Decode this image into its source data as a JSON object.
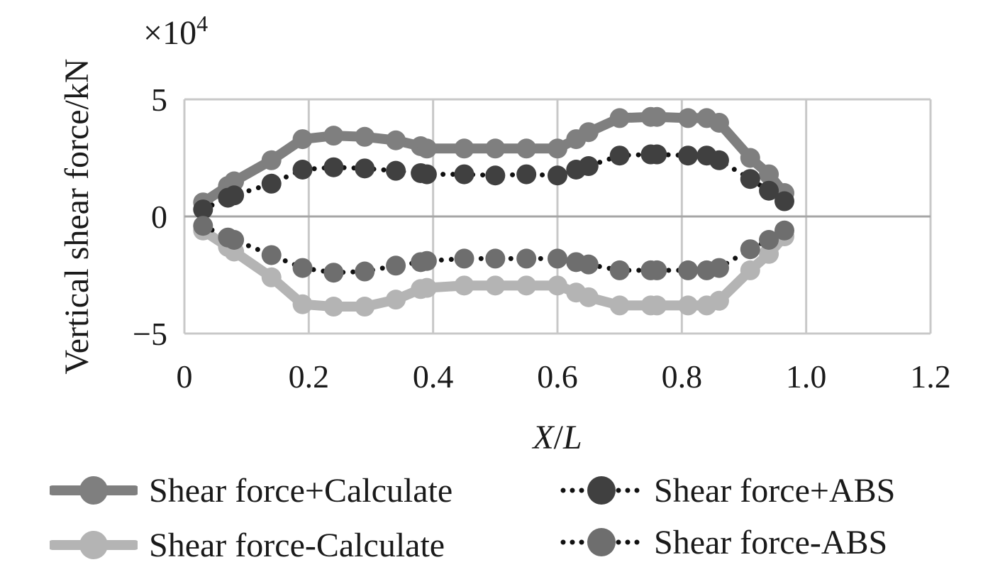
{
  "chart_data": {
    "type": "line",
    "title": "",
    "multiplier_label": "×10",
    "multiplier_exponent": "4",
    "xlabel_left": "X",
    "xlabel_sep": "/",
    "xlabel_right": "L",
    "ylabel": "Vertical shear force/kN",
    "xlim": [
      0,
      1.2
    ],
    "ylim": [
      -5,
      5
    ],
    "x_ticks": [
      0,
      0.2,
      0.4,
      0.6,
      0.8,
      1.0,
      1.2
    ],
    "x_tick_labels": [
      "0",
      "0.2",
      "0.4",
      "0.6",
      "0.8",
      "1.0",
      "1.2"
    ],
    "y_ticks": [
      5,
      0,
      -5
    ],
    "y_tick_labels": [
      "5",
      "0",
      "−5"
    ],
    "grid": true,
    "legend_position": "bottom",
    "series": [
      {
        "name": "Shear force+Calculate",
        "color": "#7f7f7f",
        "style": "solid",
        "points": [
          [
            0.03,
            0.6
          ],
          [
            0.07,
            1.3
          ],
          [
            0.08,
            1.5
          ],
          [
            0.14,
            2.4
          ],
          [
            0.19,
            3.3
          ],
          [
            0.24,
            3.45
          ],
          [
            0.29,
            3.4
          ],
          [
            0.34,
            3.25
          ],
          [
            0.38,
            3.0
          ],
          [
            0.39,
            2.9
          ],
          [
            0.45,
            2.9
          ],
          [
            0.5,
            2.9
          ],
          [
            0.55,
            2.9
          ],
          [
            0.6,
            2.9
          ],
          [
            0.63,
            3.3
          ],
          [
            0.65,
            3.6
          ],
          [
            0.7,
            4.2
          ],
          [
            0.75,
            4.25
          ],
          [
            0.76,
            4.25
          ],
          [
            0.81,
            4.2
          ],
          [
            0.84,
            4.2
          ],
          [
            0.86,
            4.0
          ],
          [
            0.91,
            2.5
          ],
          [
            0.94,
            1.8
          ],
          [
            0.965,
            1.0
          ]
        ]
      },
      {
        "name": "Shear force+ABS",
        "color": "#404040",
        "style": "dotted",
        "points": [
          [
            0.03,
            0.3
          ],
          [
            0.07,
            0.8
          ],
          [
            0.08,
            0.9
          ],
          [
            0.14,
            1.4
          ],
          [
            0.19,
            2.0
          ],
          [
            0.24,
            2.1
          ],
          [
            0.29,
            2.05
          ],
          [
            0.34,
            1.95
          ],
          [
            0.38,
            1.85
          ],
          [
            0.39,
            1.8
          ],
          [
            0.45,
            1.8
          ],
          [
            0.5,
            1.75
          ],
          [
            0.55,
            1.8
          ],
          [
            0.6,
            1.75
          ],
          [
            0.63,
            2.0
          ],
          [
            0.65,
            2.15
          ],
          [
            0.7,
            2.6
          ],
          [
            0.75,
            2.65
          ],
          [
            0.76,
            2.65
          ],
          [
            0.81,
            2.6
          ],
          [
            0.84,
            2.6
          ],
          [
            0.86,
            2.4
          ],
          [
            0.91,
            1.6
          ],
          [
            0.94,
            1.1
          ],
          [
            0.965,
            0.65
          ]
        ]
      },
      {
        "name": "Shear force-Calculate",
        "color": "#b4b4b4",
        "style": "solid",
        "points": [
          [
            0.03,
            -0.6
          ],
          [
            0.07,
            -1.3
          ],
          [
            0.08,
            -1.5
          ],
          [
            0.14,
            -2.6
          ],
          [
            0.19,
            -3.75
          ],
          [
            0.24,
            -3.85
          ],
          [
            0.29,
            -3.85
          ],
          [
            0.34,
            -3.55
          ],
          [
            0.38,
            -3.1
          ],
          [
            0.39,
            -3.05
          ],
          [
            0.45,
            -2.95
          ],
          [
            0.5,
            -2.95
          ],
          [
            0.55,
            -2.95
          ],
          [
            0.6,
            -2.95
          ],
          [
            0.63,
            -3.25
          ],
          [
            0.65,
            -3.45
          ],
          [
            0.7,
            -3.8
          ],
          [
            0.75,
            -3.8
          ],
          [
            0.76,
            -3.8
          ],
          [
            0.81,
            -3.8
          ],
          [
            0.84,
            -3.8
          ],
          [
            0.86,
            -3.6
          ],
          [
            0.91,
            -2.3
          ],
          [
            0.94,
            -1.6
          ],
          [
            0.965,
            -0.85
          ]
        ]
      },
      {
        "name": "Shear force-ABS",
        "color": "#6e6e6e",
        "style": "dotted",
        "points": [
          [
            0.03,
            -0.4
          ],
          [
            0.07,
            -0.9
          ],
          [
            0.08,
            -1.0
          ],
          [
            0.14,
            -1.65
          ],
          [
            0.19,
            -2.2
          ],
          [
            0.24,
            -2.4
          ],
          [
            0.29,
            -2.35
          ],
          [
            0.34,
            -2.1
          ],
          [
            0.38,
            -1.95
          ],
          [
            0.39,
            -1.9
          ],
          [
            0.45,
            -1.8
          ],
          [
            0.5,
            -1.8
          ],
          [
            0.55,
            -1.8
          ],
          [
            0.6,
            -1.8
          ],
          [
            0.63,
            -1.95
          ],
          [
            0.65,
            -2.05
          ],
          [
            0.7,
            -2.3
          ],
          [
            0.75,
            -2.3
          ],
          [
            0.76,
            -2.3
          ],
          [
            0.81,
            -2.3
          ],
          [
            0.84,
            -2.3
          ],
          [
            0.86,
            -2.2
          ],
          [
            0.91,
            -1.4
          ],
          [
            0.94,
            -1.0
          ],
          [
            0.965,
            -0.6
          ]
        ]
      }
    ]
  }
}
